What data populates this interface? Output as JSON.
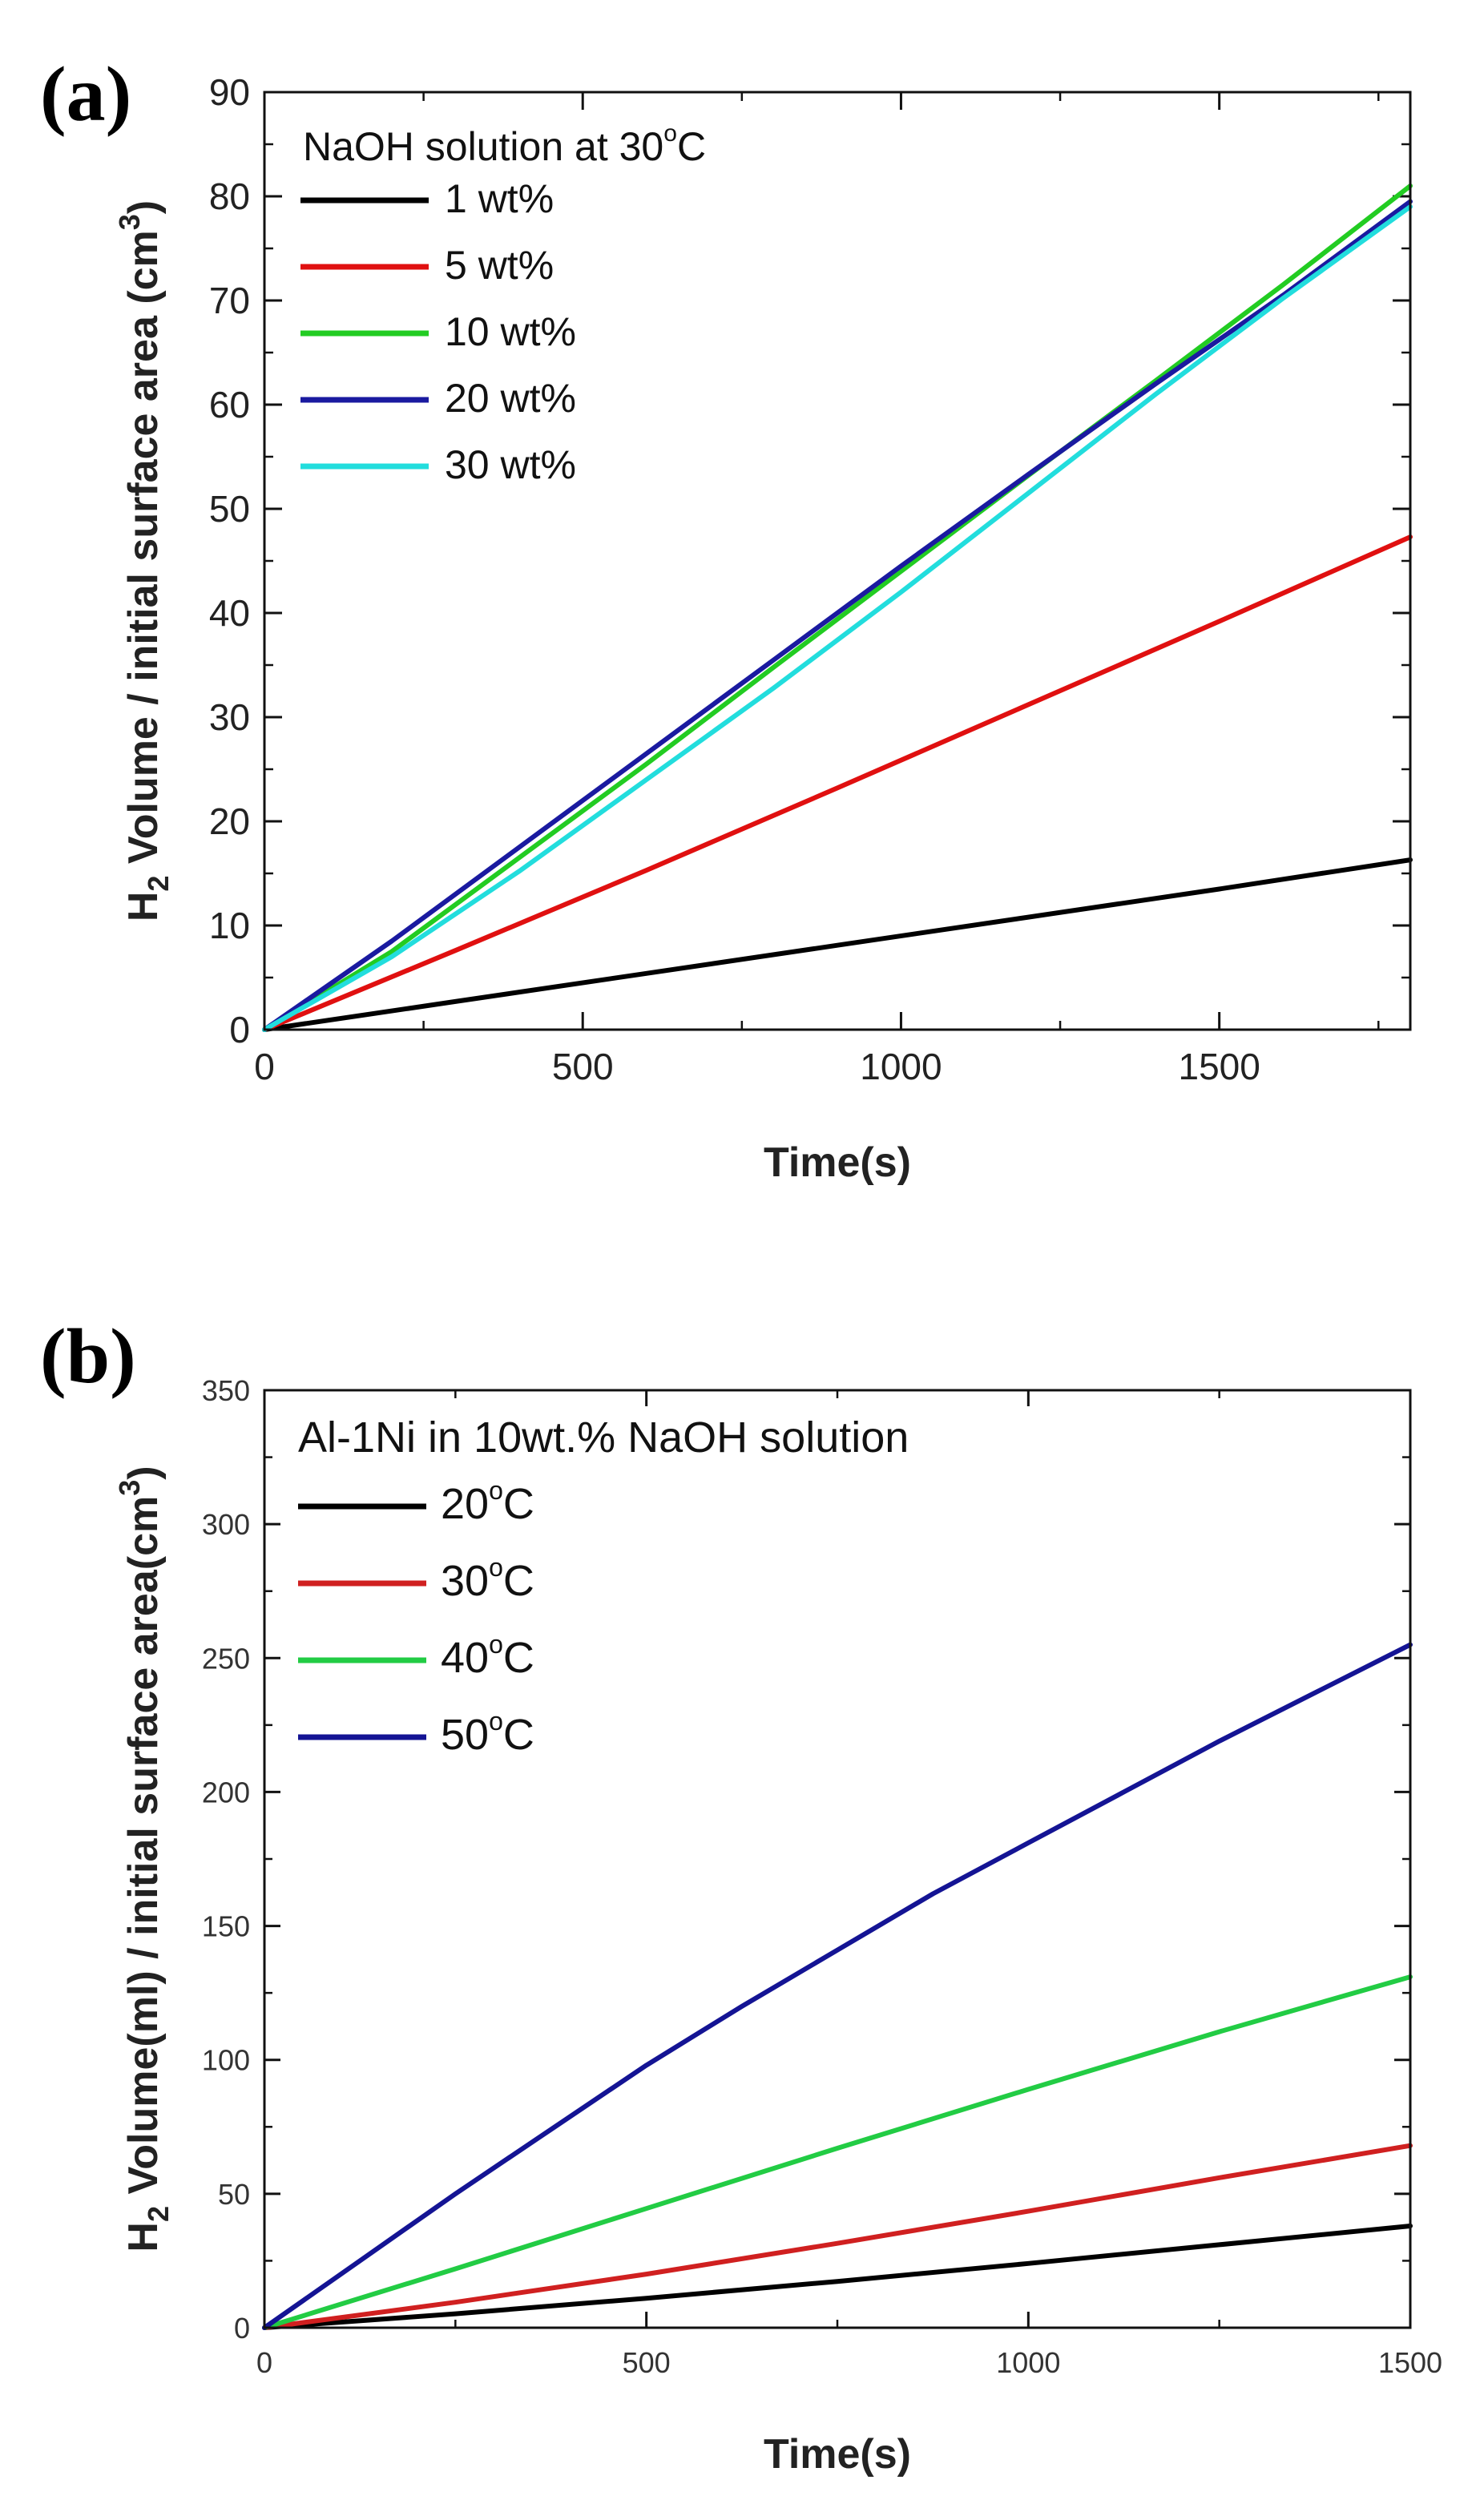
{
  "chart_data": [
    {
      "type": "line",
      "panel_label": "(a)",
      "title": "NaOH solution at 30°C",
      "xlabel": "Time(s)",
      "ylabel": "H2 Volume / initial surface area (cm3)",
      "ylabel_parts": {
        "pre": "H",
        "sub": "2",
        "mid": " Volume / initial surface area (cm",
        "sup": "3",
        "post": ")"
      },
      "title_parts": {
        "pre": "NaOH solution at 30",
        "sup": "o",
        "post": "C"
      },
      "xlim": [
        0,
        1800
      ],
      "ylim": [
        0,
        90
      ],
      "xticks": [
        0,
        500,
        1000,
        1500
      ],
      "yticks": [
        0,
        10,
        20,
        30,
        40,
        50,
        60,
        70,
        80,
        90
      ],
      "legend_position": "top-left",
      "series": [
        {
          "name": "1 wt%",
          "color": "#000000",
          "x": [
            0,
            300,
            600,
            900,
            1200,
            1500,
            1800
          ],
          "y": [
            0,
            2.7,
            5.4,
            8.1,
            10.8,
            13.5,
            16.3
          ]
        },
        {
          "name": "5 wt%",
          "color": "#e01010",
          "x": [
            0,
            300,
            600,
            900,
            1200,
            1500,
            1800
          ],
          "y": [
            0,
            7.6,
            15.3,
            23.2,
            31.2,
            39.2,
            47.3
          ]
        },
        {
          "name": "10 wt%",
          "color": "#22cc22",
          "x": [
            0,
            200,
            400,
            600,
            800,
            1000,
            1200,
            1400,
            1600,
            1800
          ],
          "y": [
            0,
            7.5,
            16.5,
            25.5,
            34.8,
            44.0,
            53.2,
            62.3,
            71.5,
            81.0
          ]
        },
        {
          "name": "20 wt%",
          "color": "#1a1aa0",
          "x": [
            0,
            200,
            400,
            600,
            800,
            1000,
            1200,
            1400,
            1600,
            1800
          ],
          "y": [
            0,
            8.5,
            17.5,
            26.5,
            35.5,
            44.5,
            53.3,
            62.0,
            70.5,
            79.5
          ]
        },
        {
          "name": "30 wt%",
          "color": "#22dddd",
          "x": [
            0,
            200,
            400,
            600,
            800,
            1000,
            1200,
            1400,
            1600,
            1800
          ],
          "y": [
            0,
            7.0,
            15.2,
            24.0,
            32.8,
            42.0,
            51.5,
            61.0,
            70.2,
            79.0
          ]
        }
      ]
    },
    {
      "type": "line",
      "panel_label": "(b)",
      "title": "Al-1Ni in 10wt.% NaOH solution",
      "xlabel": "Time(s)",
      "ylabel": "H2 Volume(ml) / initial surface area(cm3)",
      "ylabel_parts": {
        "pre": "H",
        "sub": "2",
        "mid": " Volume(ml) / initial surface area(cm",
        "sup": "3",
        "post": ")"
      },
      "xlim": [
        0,
        1500
      ],
      "ylim": [
        0,
        350
      ],
      "xticks": [
        0,
        500,
        1000,
        1500
      ],
      "yticks": [
        0,
        50,
        100,
        150,
        200,
        250,
        300,
        350
      ],
      "legend_position": "top-left",
      "series": [
        {
          "name": "20°C",
          "name_parts": {
            "pre": "20",
            "sup": "o",
            "post": "C"
          },
          "color": "#000000",
          "x": [
            0,
            250,
            500,
            750,
            1000,
            1250,
            1500
          ],
          "y": [
            0,
            5.2,
            11.0,
            17.3,
            24.0,
            31.0,
            38.0
          ]
        },
        {
          "name": "30°C",
          "name_parts": {
            "pre": "30",
            "sup": "o",
            "post": "C"
          },
          "color": "#d02020",
          "x": [
            0,
            250,
            500,
            750,
            1000,
            1250,
            1500
          ],
          "y": [
            0,
            9.5,
            20.0,
            31.5,
            43.5,
            56.0,
            68.0
          ]
        },
        {
          "name": "40°C",
          "name_parts": {
            "pre": "40",
            "sup": "o",
            "post": "C"
          },
          "color": "#22cc44",
          "x": [
            0,
            250,
            500,
            750,
            1000,
            1250,
            1500
          ],
          "y": [
            0,
            22.0,
            44.5,
            67.0,
            89.0,
            110.5,
            131.0
          ]
        },
        {
          "name": "50°C",
          "name_parts": {
            "pre": "50",
            "sup": "o",
            "post": "C"
          },
          "color": "#141494",
          "x": [
            0,
            125,
            250,
            375,
            500,
            625,
            750,
            875,
            1000,
            1125,
            1250,
            1375,
            1500
          ],
          "y": [
            0,
            25,
            50,
            74,
            98,
            120,
            141,
            162,
            181,
            200,
            219,
            237,
            255
          ]
        }
      ]
    }
  ]
}
